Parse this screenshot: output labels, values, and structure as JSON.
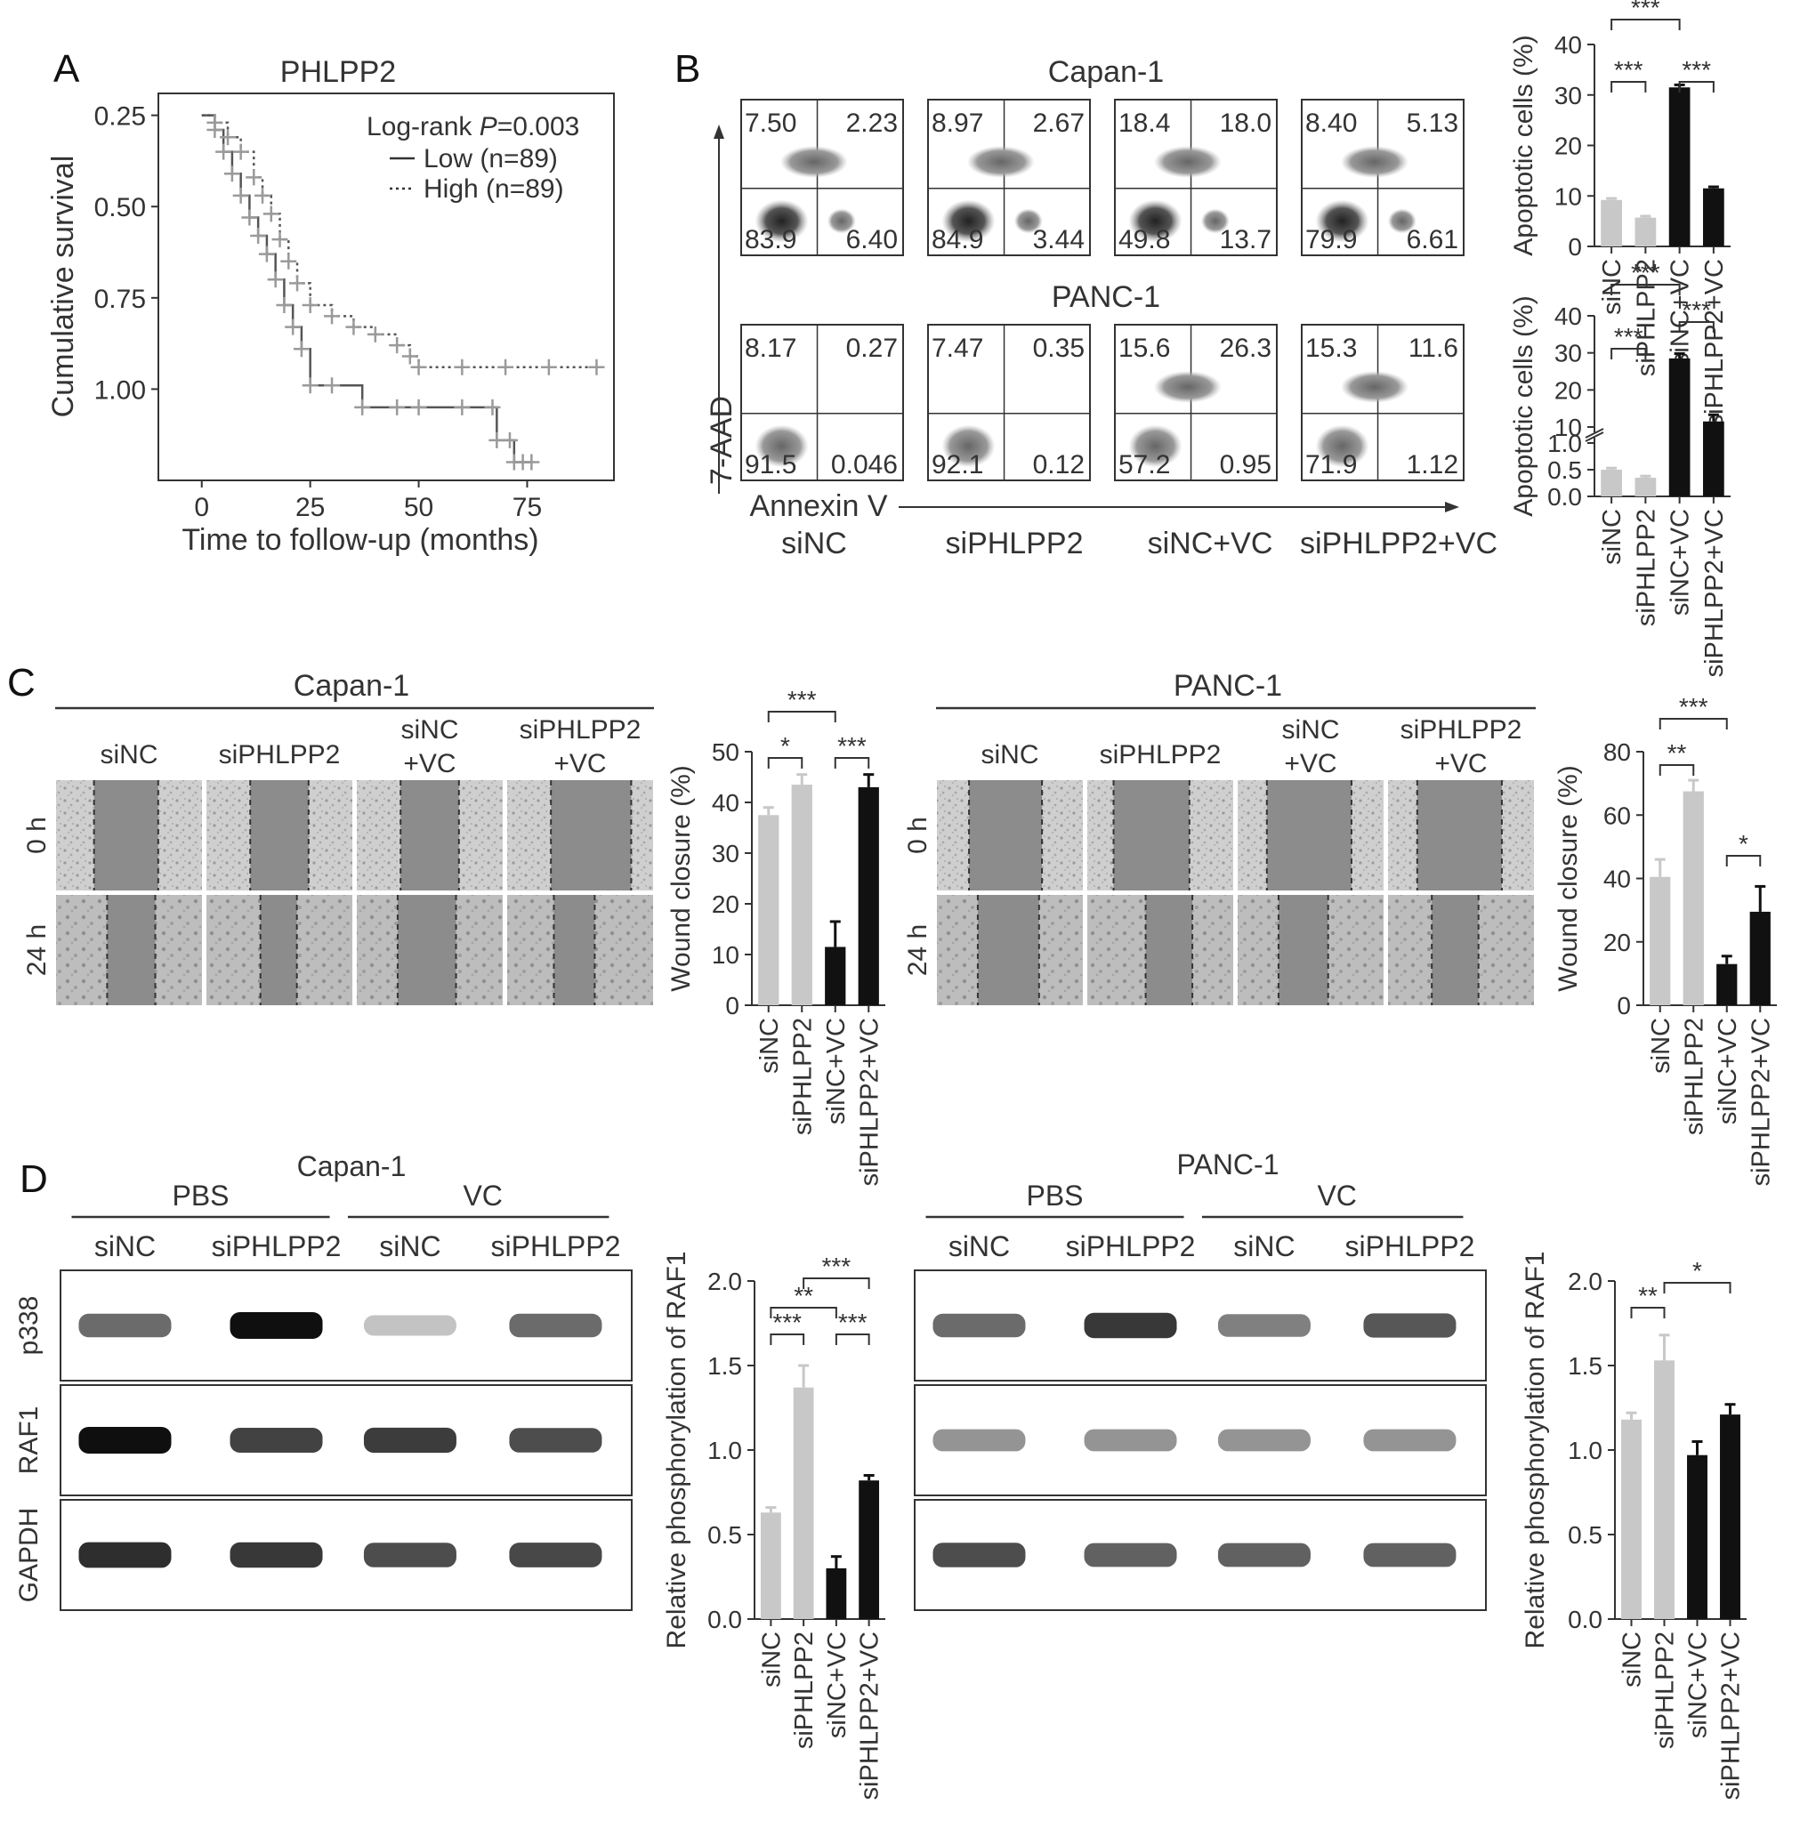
{
  "panels": {
    "A": {
      "letter": "A",
      "title": "PHLPP2",
      "logrank_prefix": "Log-rank ",
      "logrank_p": "P",
      "logrank_value": "=0.003",
      "legend": [
        {
          "label": "Low (n=89)",
          "style": "solid"
        },
        {
          "label": "High (n=89)",
          "style": "dotted"
        }
      ],
      "ylabel": "Cumulative survival",
      "xlabel": "Time to follow-up (months)",
      "yticks": [
        "1.00",
        "0.75",
        "0.50",
        "0.25"
      ],
      "xticks": [
        "0",
        "25",
        "50",
        "75"
      ]
    },
    "B": {
      "letter": "B",
      "flow_rows": [
        {
          "cell_line": "Capan-1",
          "plots": [
            {
              "ul": "7.50",
              "ur": "2.23",
              "ll": "83.9",
              "lr": "6.40"
            },
            {
              "ul": "8.97",
              "ur": "2.67",
              "ll": "84.9",
              "lr": "3.44"
            },
            {
              "ul": "18.4",
              "ur": "18.0",
              "ll": "49.8",
              "lr": "13.7"
            },
            {
              "ul": "8.40",
              "ur": "5.13",
              "ll": "79.9",
              "lr": "6.61"
            }
          ]
        },
        {
          "cell_line": "PANC-1",
          "plots": [
            {
              "ul": "8.17",
              "ur": "0.27",
              "ll": "91.5",
              "lr": "0.046"
            },
            {
              "ul": "7.47",
              "ur": "0.35",
              "ll": "92.1",
              "lr": "0.12"
            },
            {
              "ul": "15.6",
              "ur": "26.3",
              "ll": "57.2",
              "lr": "0.95"
            },
            {
              "ul": "15.3",
              "ur": "11.6",
              "ll": "71.9",
              "lr": "1.12"
            }
          ]
        }
      ],
      "y_axis": "7-AAD",
      "x_axis": "Annexin V",
      "groups": [
        "siNC",
        "siPHLPP2",
        "siNC+VC",
        "siPHLPP2+VC"
      ]
    },
    "C": {
      "letter": "C",
      "lines": [
        "Capan-1",
        "PANC-1"
      ],
      "group_labels": [
        [
          "siNC"
        ],
        [
          "siPHLPP2"
        ],
        [
          "siNC",
          "+VC"
        ],
        [
          "siPHLPP2",
          "+VC"
        ]
      ],
      "times": [
        "0 h",
        "24 h"
      ]
    },
    "D": {
      "letter": "D",
      "lines": [
        "Capan-1",
        "PANC-1"
      ],
      "treatments": [
        "PBS",
        "VC"
      ],
      "lanes": [
        "siNC",
        "siPHLPP2",
        "siNC",
        "siPHLPP2"
      ],
      "bands": [
        "p338",
        "RAF1",
        "GAPDH"
      ]
    }
  },
  "colors": {
    "light_bar": "#c8c8c8",
    "dark_bar": "#111111",
    "axis": "#333333",
    "km_line": "#555555",
    "km_censor": "#9a9a9a"
  },
  "chart_data": [
    {
      "id": "km",
      "type": "line",
      "title": "PHLPP2",
      "xlabel": "Time to follow-up (months)",
      "ylabel": "Cumulative survival",
      "xlim": [
        -10,
        95
      ],
      "ylim": [
        0.0,
        1.06
      ],
      "yticks": [
        0.25,
        0.5,
        0.75,
        1.0
      ],
      "xticks": [
        0,
        25,
        50,
        75
      ],
      "series": [
        {
          "name": "Low (n=89)",
          "x": [
            0,
            3,
            5,
            7,
            9,
            11,
            13,
            15,
            17,
            19,
            21,
            23,
            25,
            30,
            37,
            45,
            50,
            60,
            67,
            68,
            71,
            72,
            74,
            76
          ],
          "y": [
            1.0,
            0.96,
            0.9,
            0.84,
            0.78,
            0.72,
            0.67,
            0.62,
            0.55,
            0.48,
            0.42,
            0.36,
            0.26,
            0.26,
            0.2,
            0.2,
            0.2,
            0.2,
            0.2,
            0.11,
            0.11,
            0.05,
            0.05,
            0.05
          ]
        },
        {
          "name": "High (n=89)",
          "x": [
            0,
            3,
            6,
            9,
            12,
            14,
            16,
            18,
            20,
            22,
            25,
            30,
            35,
            40,
            45,
            48,
            50,
            60,
            70,
            80,
            91
          ],
          "y": [
            1.0,
            0.98,
            0.94,
            0.9,
            0.83,
            0.78,
            0.73,
            0.66,
            0.6,
            0.54,
            0.48,
            0.45,
            0.42,
            0.4,
            0.37,
            0.34,
            0.31,
            0.31,
            0.31,
            0.31,
            0.31
          ]
        }
      ]
    },
    {
      "id": "b_capan",
      "type": "bar",
      "ylabel": "Apoptotic cells (%)",
      "categories": [
        "siNC",
        "siPHLPP2",
        "siNC+VC",
        "siPHLPP2+VC"
      ],
      "values": [
        9.2,
        5.7,
        31.5,
        11.5
      ],
      "errors": [
        0.3,
        0.3,
        0.5,
        0.3
      ],
      "ylim": [
        0,
        40
      ],
      "yticks": [
        0,
        10,
        20,
        30,
        40
      ],
      "significance": [
        {
          "from": 0,
          "to": 1,
          "label": "***"
        },
        {
          "from": 2,
          "to": 3,
          "label": "***"
        },
        {
          "from": 0,
          "to": 2,
          "label": "***"
        }
      ]
    },
    {
      "id": "b_panc",
      "type": "bar",
      "ylabel": "Apoptotic cells (%)",
      "categories": [
        "siNC",
        "siPHLPP2",
        "siNC+VC",
        "siPHLPP2+VC"
      ],
      "values": [
        0.5,
        0.35,
        28.5,
        11.5
      ],
      "errors": [
        0.03,
        0.03,
        1.3,
        1.8
      ],
      "broken_axis": true,
      "yticks_upper": [
        10,
        20,
        30,
        40
      ],
      "yticks_lower": [
        0.0,
        0.5,
        1.0
      ],
      "significance": [
        {
          "from": 0,
          "to": 1,
          "label": "***"
        },
        {
          "from": 2,
          "to": 3,
          "label": "***"
        },
        {
          "from": 0,
          "to": 2,
          "label": "***"
        }
      ]
    },
    {
      "id": "c_capan",
      "type": "bar",
      "ylabel": "Wound closure (%)",
      "categories": [
        "siNC",
        "siPHLPP2",
        "siNC+VC",
        "siPHLPP2+VC"
      ],
      "values": [
        37.5,
        43.5,
        11.5,
        43.0
      ],
      "errors": [
        1.5,
        2.0,
        5.0,
        2.5
      ],
      "ylim": [
        0,
        50
      ],
      "yticks": [
        0,
        10,
        20,
        30,
        40,
        50
      ],
      "significance": [
        {
          "from": 0,
          "to": 1,
          "label": "*"
        },
        {
          "from": 2,
          "to": 3,
          "label": "***"
        },
        {
          "from": 0,
          "to": 2,
          "label": "***"
        }
      ]
    },
    {
      "id": "c_panc",
      "type": "bar",
      "ylabel": "Wound closure (%)",
      "categories": [
        "siNC",
        "siPHLPP2",
        "siNC+VC",
        "siPHLPP2+VC"
      ],
      "values": [
        40.5,
        67.5,
        13.0,
        29.5
      ],
      "errors": [
        5.5,
        3.5,
        2.5,
        8.0
      ],
      "ylim": [
        0,
        80
      ],
      "yticks": [
        0,
        20,
        40,
        60,
        80
      ],
      "significance": [
        {
          "from": 0,
          "to": 1,
          "label": "**"
        },
        {
          "from": 2,
          "to": 3,
          "label": "*"
        },
        {
          "from": 0,
          "to": 2,
          "label": "***"
        }
      ]
    },
    {
      "id": "d_capan",
      "type": "bar",
      "ylabel": "Relative phosphorylation of RAF1",
      "categories": [
        "siNC",
        "siPHLPP2",
        "siNC+VC",
        "siPHLPP2+VC"
      ],
      "values": [
        0.63,
        1.37,
        0.3,
        0.82
      ],
      "errors": [
        0.03,
        0.13,
        0.07,
        0.03
      ],
      "ylim": [
        0,
        2.0
      ],
      "yticks": [
        0.0,
        0.5,
        1.0,
        1.5,
        2.0
      ],
      "significance": [
        {
          "from": 0,
          "to": 1,
          "label": "***"
        },
        {
          "from": 2,
          "to": 3,
          "label": "***"
        },
        {
          "from": 0,
          "to": 2,
          "label": "**"
        },
        {
          "from": 1,
          "to": 3,
          "label": "***"
        }
      ]
    },
    {
      "id": "d_panc",
      "type": "bar",
      "ylabel": "Relative phosphorylation of RAF1",
      "categories": [
        "siNC",
        "siPHLPP2",
        "siNC+VC",
        "siPHLPP2+VC"
      ],
      "values": [
        1.18,
        1.53,
        0.97,
        1.21
      ],
      "errors": [
        0.04,
        0.15,
        0.08,
        0.06
      ],
      "ylim": [
        0,
        2.0
      ],
      "yticks": [
        0.0,
        0.5,
        1.0,
        1.5,
        2.0
      ],
      "significance": [
        {
          "from": 0,
          "to": 1,
          "label": "**"
        },
        {
          "from": 1,
          "to": 3,
          "label": "*"
        }
      ]
    }
  ]
}
